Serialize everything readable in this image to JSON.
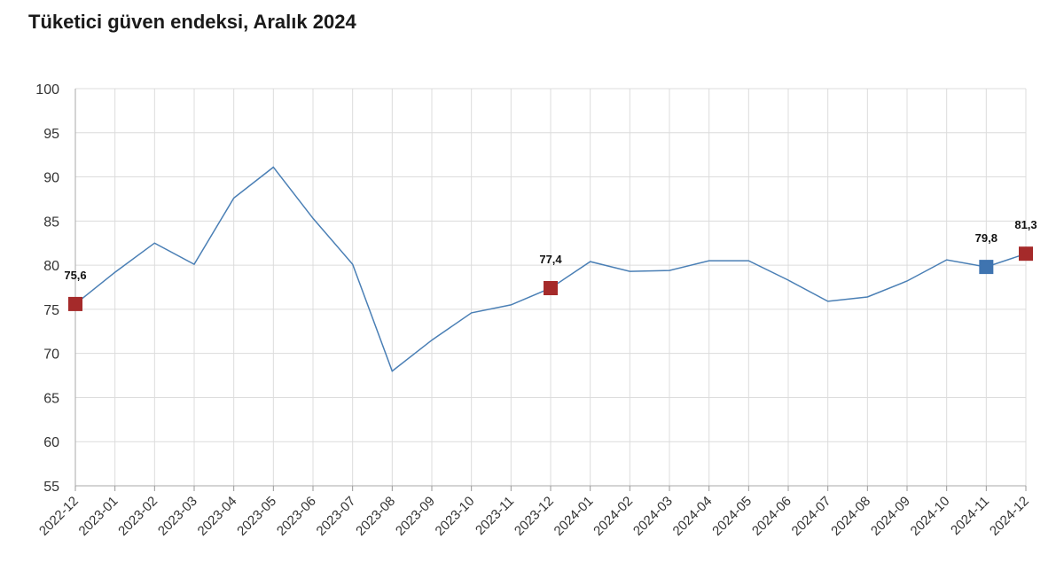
{
  "title": "Tüketici güven endeksi, Aralık 2024",
  "colors": {
    "line": "#4a7fb5",
    "marker_red": "#a52a2a",
    "marker_blue": "#3f74b0",
    "grid": "#dcdcdc"
  },
  "chart_data": {
    "type": "line",
    "title": "Tüketici güven endeksi, Aralık 2024",
    "xlabel": "",
    "ylabel": "",
    "ylim": [
      55,
      100
    ],
    "yticks": [
      55,
      60,
      65,
      70,
      75,
      80,
      85,
      90,
      95,
      100
    ],
    "grid": true,
    "categories": [
      "2022-12",
      "2023-01",
      "2023-02",
      "2023-03",
      "2023-04",
      "2023-05",
      "2023-06",
      "2023-07",
      "2023-08",
      "2023-09",
      "2023-10",
      "2023-11",
      "2023-12",
      "2024-01",
      "2024-02",
      "2024-03",
      "2024-04",
      "2024-05",
      "2024-06",
      "2024-07",
      "2024-08",
      "2024-09",
      "2024-10",
      "2024-11",
      "2024-12"
    ],
    "series": [
      {
        "values": [
          75.6,
          79.2,
          82.5,
          80.1,
          87.6,
          91.1,
          85.3,
          80.1,
          68.0,
          71.5,
          74.6,
          75.5,
          77.4,
          80.4,
          79.3,
          79.4,
          80.5,
          80.5,
          78.3,
          75.9,
          76.4,
          78.2,
          80.6,
          79.8,
          81.3
        ]
      }
    ],
    "highlights": [
      {
        "index": 0,
        "label": "75,6",
        "color": "red"
      },
      {
        "index": 12,
        "label": "77,4",
        "color": "red"
      },
      {
        "index": 23,
        "label": "79,8",
        "color": "blue"
      },
      {
        "index": 24,
        "label": "81,3",
        "color": "red"
      }
    ]
  }
}
